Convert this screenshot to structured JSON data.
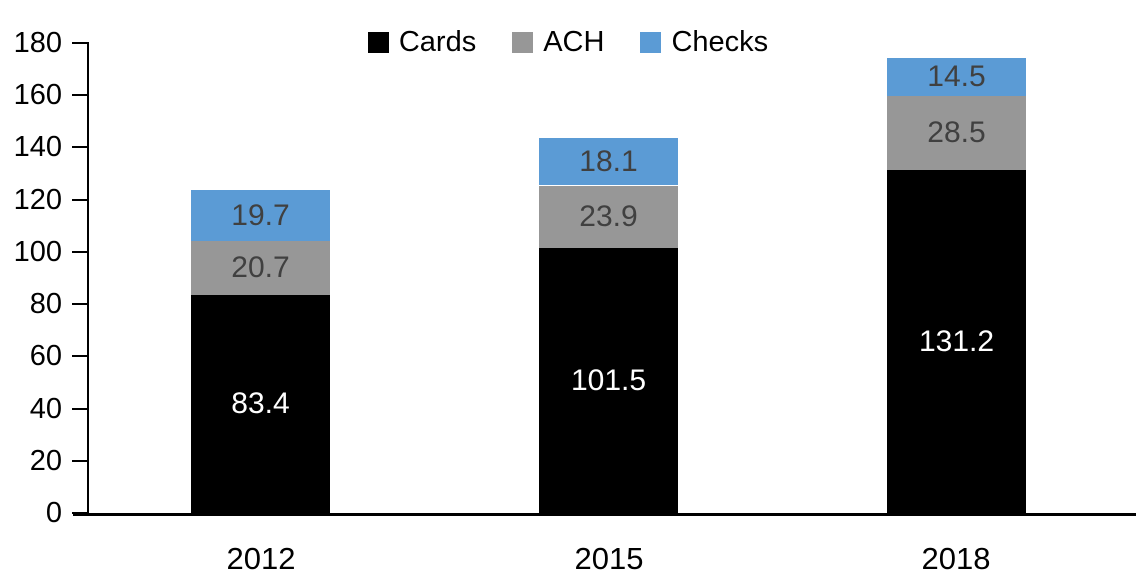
{
  "chart_data": {
    "type": "bar",
    "stacked": true,
    "title": "",
    "xlabel": "",
    "ylabel": "",
    "categories": [
      "2012",
      "2015",
      "2018"
    ],
    "series": [
      {
        "name": "Cards",
        "color": "#000000",
        "label_color": "#ffffff",
        "values": [
          83.4,
          101.5,
          131.2
        ]
      },
      {
        "name": "ACH",
        "color": "#979797",
        "label_color": "#404040",
        "values": [
          20.7,
          23.9,
          28.5
        ]
      },
      {
        "name": "Checks",
        "color": "#5b9bd5",
        "label_color": "#404040",
        "values": [
          19.7,
          18.1,
          14.5
        ]
      }
    ],
    "ylim": [
      0,
      180
    ],
    "yticks": [
      0,
      20,
      40,
      60,
      80,
      100,
      120,
      140,
      160,
      180
    ],
    "grid": false,
    "legend_position": "top-center"
  }
}
